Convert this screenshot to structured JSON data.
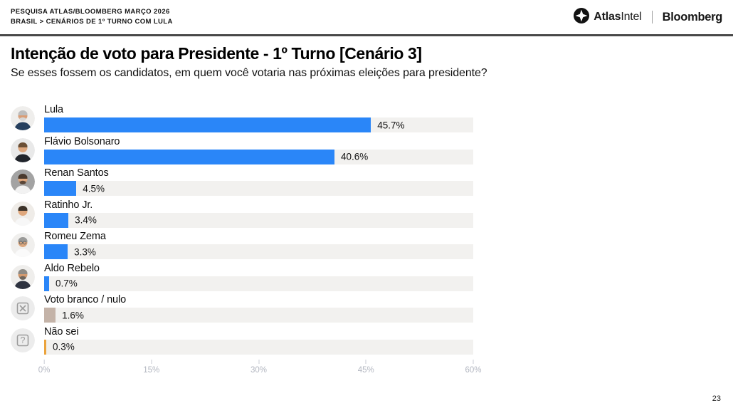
{
  "header": {
    "kicker_line1": "PESQUISA ATLAS/BLOOMBERG MARÇO 2026",
    "kicker_line2": "BRASIL > CENÁRIOS DE 1º TURNO COM LULA",
    "logos": {
      "atlas_icon": "atlas-star-icon",
      "atlas_bold": "Atlas",
      "atlas_light": "Intel",
      "bloomberg": "Bloomberg"
    }
  },
  "page": {
    "number": "23"
  },
  "colors": {
    "bar_blue": "#2a86f8",
    "bar_tan": "#c4b3a8",
    "bar_orange": "#eba33c",
    "track": "#f2f1ef",
    "axis_text": "#b3b7c1",
    "header_rule": "#484848"
  },
  "chart_data": {
    "type": "bar",
    "orientation": "horizontal",
    "title": "Intenção de voto para Presidente - 1º Turno [Cenário 3]",
    "subtitle": "Se esses fossem os candidatos, em quem você votaria nas próximas eleições para presidente?",
    "xlim": [
      0,
      60
    ],
    "x_tick_values": [
      0,
      15,
      30,
      45,
      60
    ],
    "x_tick_labels": [
      "0%",
      "15%",
      "30%",
      "45%",
      "60%"
    ],
    "grid": false,
    "legend": false,
    "categories": [
      "Lula",
      "Flávio Bolsonaro",
      "Renan Santos",
      "Ratinho Jr.",
      "Romeu Zema",
      "Aldo Rebelo",
      "Voto branco / nulo",
      "Não sei"
    ],
    "values": [
      45.7,
      40.6,
      4.5,
      3.4,
      3.3,
      0.7,
      1.6,
      0.3
    ],
    "value_labels": [
      "45.7%",
      "40.6%",
      "4.5%",
      "3.4%",
      "3.3%",
      "0.7%",
      "1.6%",
      "0.3%"
    ],
    "rows": [
      {
        "name": "Lula",
        "value": 45.7,
        "label": "45.7%",
        "color": "#2a86f8",
        "avatar": {
          "icon": "person-photo",
          "bg": "#efeeec",
          "hair": "#bdbdbd",
          "skin": "#d99c74",
          "shirt": "#27405e",
          "beard": "#d6d6d6"
        }
      },
      {
        "name": "Flávio Bolsonaro",
        "value": 40.6,
        "label": "40.6%",
        "color": "#2a86f8",
        "avatar": {
          "icon": "person-photo",
          "bg": "#e9e9e9",
          "hair": "#6b4f35",
          "skin": "#dda77e",
          "shirt": "#20242b"
        }
      },
      {
        "name": "Renan Santos",
        "value": 4.5,
        "label": "4.5%",
        "color": "#2a86f8",
        "avatar": {
          "icon": "person-photo",
          "bg": "#a3a3a3",
          "hair": "#4a3a2e",
          "skin": "#dfa87f",
          "shirt": "#f2f2f2",
          "beard": "#5a4638"
        }
      },
      {
        "name": "Ratinho Jr.",
        "value": 3.4,
        "label": "3.4%",
        "color": "#2a86f8",
        "avatar": {
          "icon": "person-photo",
          "bg": "#efece8",
          "hair": "#3c3228",
          "skin": "#e0a87d",
          "shirt": "#f7f7f7"
        }
      },
      {
        "name": "Romeu Zema",
        "value": 3.3,
        "label": "3.3%",
        "color": "#2a86f8",
        "avatar": {
          "icon": "person-photo",
          "bg": "#f0efed",
          "hair": "#9a9a98",
          "skin": "#dca87f",
          "shirt": "#fafafa",
          "glasses": true
        }
      },
      {
        "name": "Aldo Rebelo",
        "value": 0.7,
        "label": "0.7%",
        "color": "#2a86f8",
        "avatar": {
          "icon": "person-photo",
          "bg": "#efeeec",
          "hair": "#8e8a84",
          "skin": "#d39a6f",
          "shirt": "#2e3340",
          "beard": "#6e655c"
        }
      },
      {
        "name": "Voto branco / nulo",
        "value": 1.6,
        "label": "1.6%",
        "color": "#c4b3a8",
        "avatar": {
          "icon": "x-box",
          "bg": "#ececec",
          "stroke": "#9b9b9b"
        }
      },
      {
        "name": "Não sei",
        "value": 0.3,
        "label": "0.3%",
        "color": "#eba33c",
        "avatar": {
          "icon": "question-box",
          "bg": "#ececec",
          "stroke": "#9b9b9b"
        }
      }
    ]
  }
}
